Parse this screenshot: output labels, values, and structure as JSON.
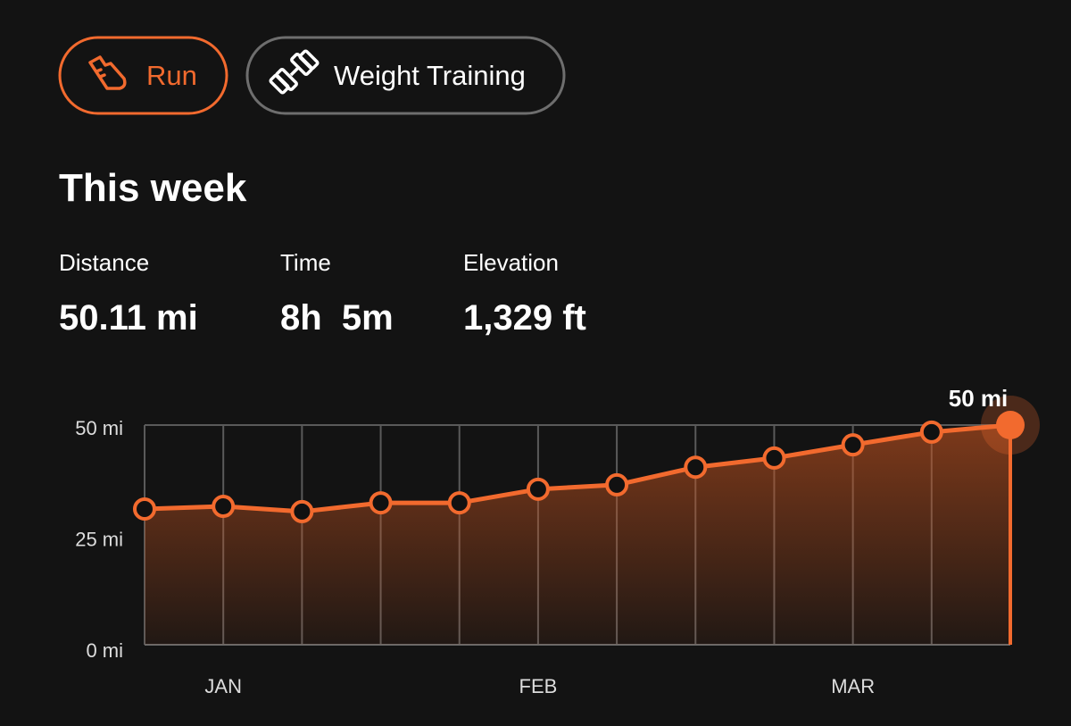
{
  "tabs": [
    {
      "label": "Run"
    },
    {
      "label": "Weight Training"
    }
  ],
  "summary": {
    "title": "This week",
    "stats": [
      {
        "label": "Distance",
        "value": "50.11 mi"
      },
      {
        "label": "Time",
        "value": "8h  5m"
      },
      {
        "label": "Elevation",
        "value": "1,329 ft"
      }
    ]
  },
  "chart_data": {
    "type": "line",
    "categories": [
      null,
      "JAN",
      null,
      null,
      null,
      "FEB",
      null,
      null,
      null,
      "MAR",
      null,
      null
    ],
    "values": [
      30.9,
      31.5,
      30.3,
      32.3,
      32.3,
      35.4,
      36.4,
      40.4,
      42.5,
      45.5,
      48.4,
      50
    ],
    "value_labels": [
      null,
      null,
      null,
      null,
      null,
      null,
      null,
      null,
      null,
      null,
      null,
      "50 mi"
    ],
    "color": "#f26a2e",
    "ylim": [
      0,
      50
    ],
    "yticks": [
      {
        "value": 0,
        "label": "0 mi"
      },
      {
        "value": 25,
        "label": "25 mi"
      },
      {
        "value": 50,
        "label": "50 mi"
      }
    ],
    "grid": true
  }
}
